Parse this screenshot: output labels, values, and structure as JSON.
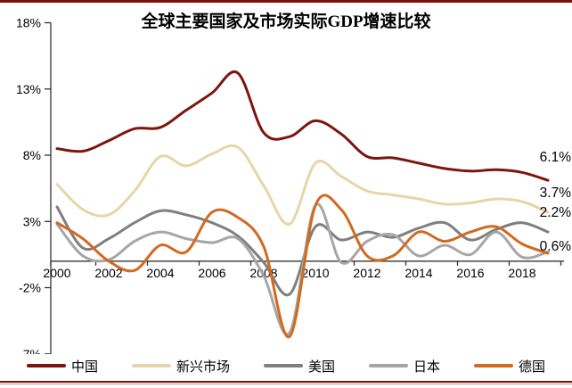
{
  "title": "全球主要国家及市场实际GDP增速比较",
  "chart_data": {
    "type": "line",
    "x_years": [
      2000,
      2001,
      2002,
      2003,
      2004,
      2005,
      2006,
      2007,
      2008,
      2009,
      2010,
      2011,
      2012,
      2013,
      2014,
      2015,
      2016,
      2017,
      2018,
      2019
    ],
    "series": [
      {
        "key": "china",
        "name": "中国",
        "color": "#7d150d",
        "end_label": "6.1%",
        "values": [
          8.5,
          8.3,
          9.1,
          10.0,
          10.1,
          11.4,
          12.7,
          14.2,
          9.7,
          9.4,
          10.6,
          9.6,
          7.9,
          7.8,
          7.4,
          7.0,
          6.8,
          6.9,
          6.7,
          6.1
        ]
      },
      {
        "key": "emerging-markets",
        "name": "新兴市场",
        "color": "#e8d5a7",
        "end_label": "3.7%",
        "values": [
          5.8,
          3.9,
          3.5,
          5.3,
          7.9,
          7.2,
          8.1,
          8.6,
          5.7,
          2.8,
          7.4,
          6.4,
          5.3,
          5.0,
          4.7,
          4.3,
          4.4,
          4.7,
          4.5,
          3.7
        ]
      },
      {
        "key": "united-states",
        "name": "美国",
        "color": "#7f7f7f",
        "end_label": "2.2%",
        "values": [
          4.1,
          1.0,
          1.7,
          2.9,
          3.8,
          3.5,
          2.9,
          1.9,
          -0.1,
          -2.5,
          2.6,
          1.6,
          2.2,
          1.8,
          2.5,
          2.9,
          1.6,
          2.4,
          2.9,
          2.2
        ]
      },
      {
        "key": "japan",
        "name": "日本",
        "color": "#a6a6a6",
        "end_label": "",
        "values": [
          2.8,
          0.4,
          0.1,
          1.5,
          2.2,
          1.7,
          1.4,
          1.7,
          -1.1,
          -5.4,
          4.2,
          -0.1,
          1.5,
          2.0,
          0.4,
          1.2,
          0.5,
          2.2,
          0.3,
          0.7
        ]
      },
      {
        "key": "germany",
        "name": "德国",
        "color": "#d2691e",
        "end_label": "0.6%",
        "values": [
          2.9,
          1.7,
          0.0,
          -0.7,
          1.2,
          0.7,
          3.7,
          3.3,
          1.1,
          -5.7,
          4.2,
          3.9,
          0.4,
          0.4,
          2.2,
          1.5,
          2.2,
          2.6,
          1.3,
          0.6
        ]
      }
    ],
    "y_ticks": [
      {
        "value": 18,
        "label": "18%"
      },
      {
        "value": 13,
        "label": "13%"
      },
      {
        "value": 8,
        "label": "8%"
      },
      {
        "value": 3,
        "label": "3%"
      },
      {
        "value": -2,
        "label": "-2%"
      },
      {
        "value": -7,
        "label": "-7%"
      }
    ],
    "x_ticks": [
      {
        "year": 2000,
        "label": "2000"
      },
      {
        "year": 2002,
        "label": "2002"
      },
      {
        "year": 2004,
        "label": "2004"
      },
      {
        "year": 2006,
        "label": "2006"
      },
      {
        "year": 2008,
        "label": "2008"
      },
      {
        "year": 2010,
        "label": "2010"
      },
      {
        "year": 2012,
        "label": "2012"
      },
      {
        "year": 2014,
        "label": "2014"
      },
      {
        "year": 2016,
        "label": "2016"
      },
      {
        "year": 2018,
        "label": "2018"
      }
    ],
    "ylim": [
      -7,
      18
    ],
    "grid": false,
    "legend_position": "bottom"
  },
  "colors": {
    "frame": "#7d1007",
    "axis": "#333333",
    "tick_label": "#000000",
    "end_label": "#000000"
  }
}
